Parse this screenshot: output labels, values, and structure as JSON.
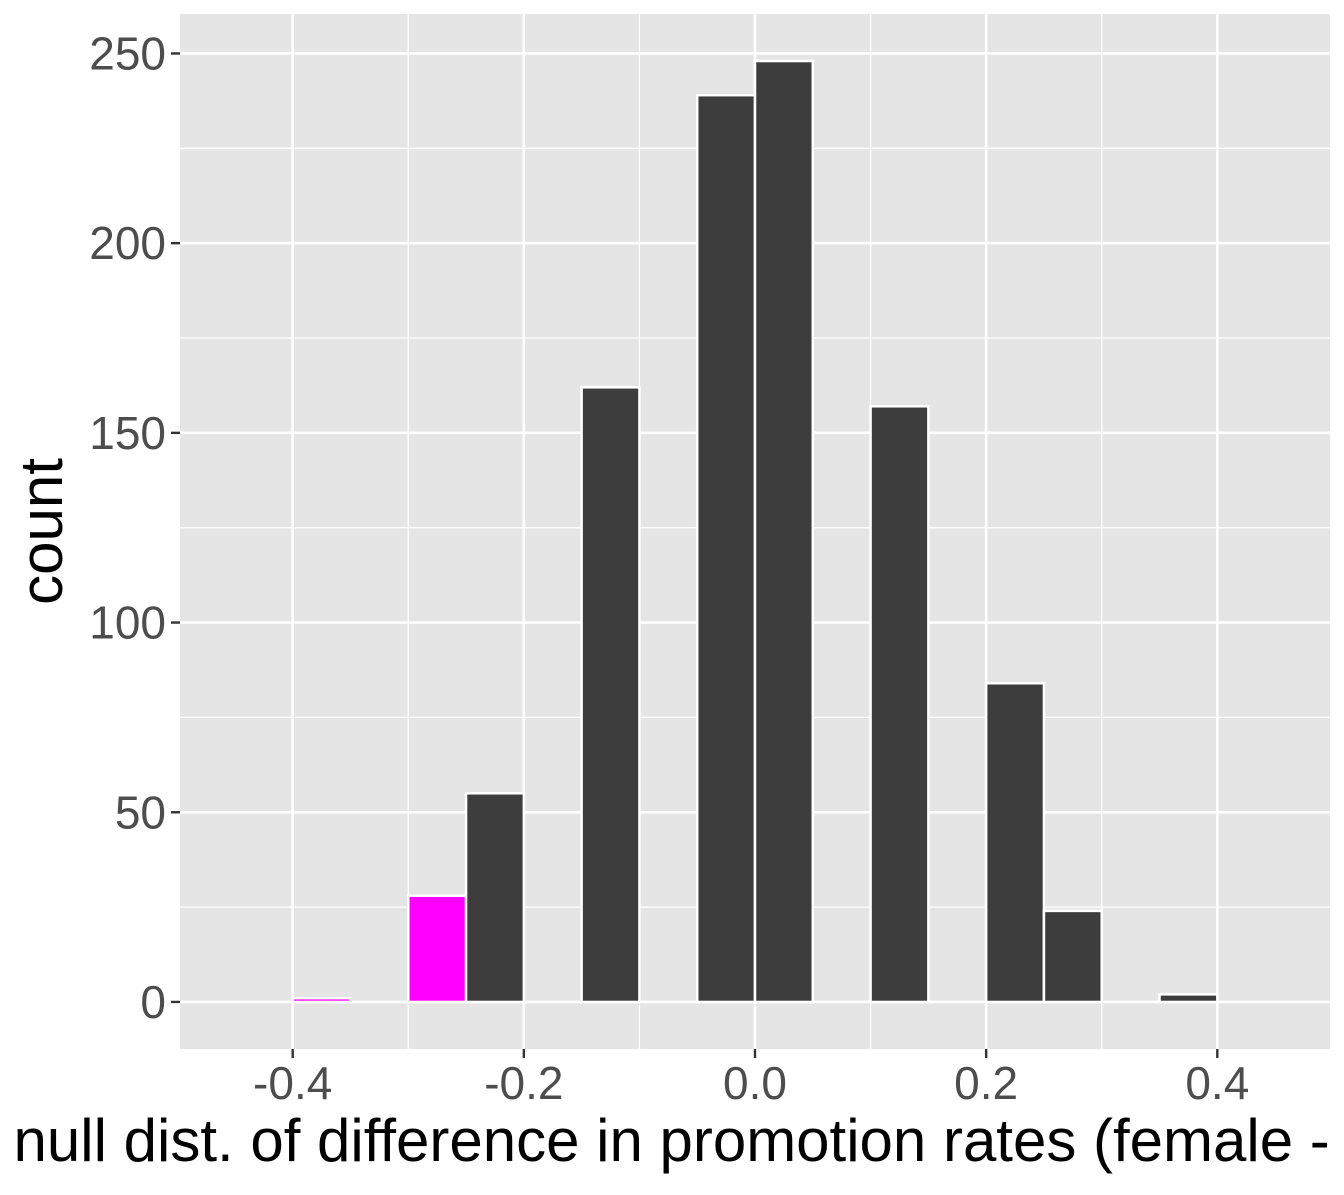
{
  "colors": {
    "panel_background": "#e5e5e5",
    "grid": "#ffffff",
    "bar_fill": "#3d3d3d",
    "bar_stroke": "#ffffff",
    "shaded_fill": "#ff00ff",
    "tick_text": "#4d4d4d",
    "axis_title_text": "#000000"
  },
  "chart_data": {
    "type": "bar",
    "subtype": "histogram",
    "xlabel": "null dist. of difference in promotion rates (female - male)",
    "ylabel": "count",
    "xlim": [
      -0.4975,
      0.4975
    ],
    "ylim": [
      -12.4,
      260.4
    ],
    "x_ticks": [
      -0.4,
      -0.2,
      0.0,
      0.2,
      0.4
    ],
    "x_tick_labels": [
      "-0.4",
      "-0.2",
      "0.0",
      "0.2",
      "0.4"
    ],
    "y_ticks": [
      0,
      50,
      100,
      150,
      200,
      250
    ],
    "y_tick_labels": [
      "0",
      "50",
      "100",
      "150",
      "200",
      "250"
    ],
    "grid": true,
    "shaded_region": "x <= -0.25",
    "bins": [
      {
        "x0": -0.4,
        "x1": -0.35,
        "count": 1,
        "shaded": true
      },
      {
        "x0": -0.3,
        "x1": -0.25,
        "count": 28,
        "shaded": true
      },
      {
        "x0": -0.25,
        "x1": -0.2,
        "count": 55,
        "shaded": false
      },
      {
        "x0": -0.15,
        "x1": -0.1,
        "count": 162,
        "shaded": false
      },
      {
        "x0": -0.05,
        "x1": 0.0,
        "count": 239,
        "shaded": false
      },
      {
        "x0": 0.0,
        "x1": 0.05,
        "count": 248,
        "shaded": false
      },
      {
        "x0": 0.1,
        "x1": 0.15,
        "count": 157,
        "shaded": false
      },
      {
        "x0": 0.2,
        "x1": 0.25,
        "count": 84,
        "shaded": false
      },
      {
        "x0": 0.25,
        "x1": 0.3,
        "count": 24,
        "shaded": false
      },
      {
        "x0": 0.35,
        "x1": 0.4,
        "count": 2,
        "shaded": false
      }
    ]
  }
}
